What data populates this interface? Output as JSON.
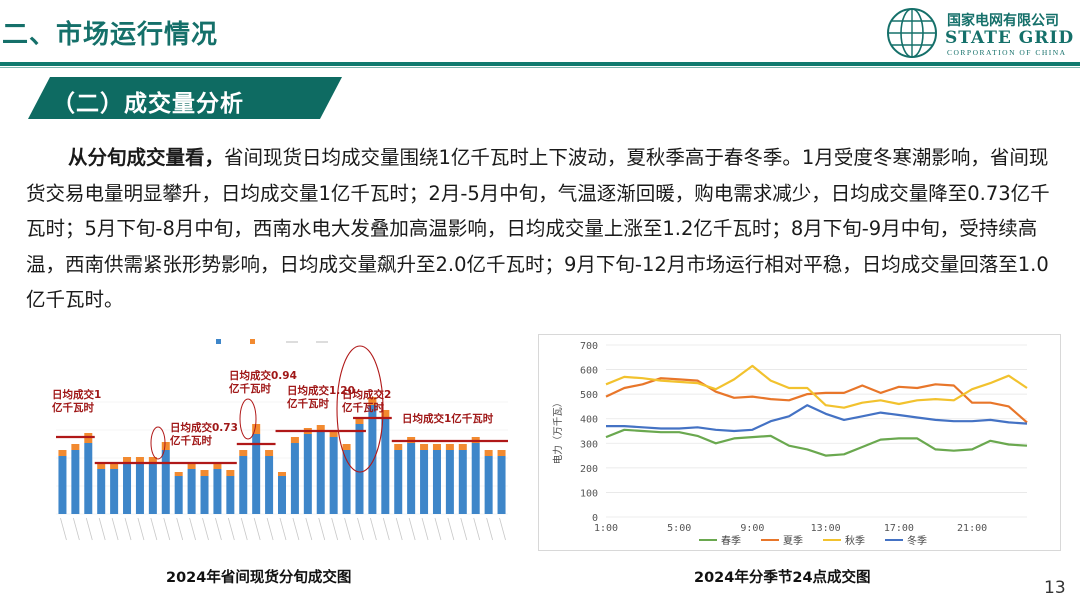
{
  "header": {
    "title": "二、市场运行情况"
  },
  "logo": {
    "cn": "国家电网有限公司",
    "en": "STATE GRID",
    "en_sub": "CORPORATION OF CHINA"
  },
  "section": {
    "title": "（二）成交量分析"
  },
  "paragraph": {
    "lead": "从分旬成交量看，",
    "body": "省间现货日均成交量围绕1亿千瓦时上下波动，夏秋季高于春冬季。1月受度冬寒潮影响，省间现货交易电量明显攀升，日均成交量1亿千瓦时；2月-5月中旬，气温逐渐回暖，购电需求减少，日均成交量降至0.73亿千瓦时；5月下旬-8月中旬，西南水电大发叠加高温影响，日均成交量上涨至1.2亿千瓦时；8月下旬-9月中旬，受持续高温，西南供需紧张形势影响，日均成交量飙升至2.0亿千瓦时；9月下旬-12月市场运行相对平稳，日均成交量回落至1.0亿千瓦时。"
  },
  "chart_data": [
    {
      "type": "bar",
      "title": "2024年省间现货分旬成交图",
      "colors": {
        "base": "#3e86c9",
        "top": "#f28a30",
        "avg": "#b01818"
      },
      "series": [
        {
          "name": "base",
          "values": [
            58,
            64,
            71,
            45,
            45,
            51,
            51,
            51,
            64,
            38,
            45,
            38,
            45,
            38,
            58,
            80,
            58,
            38,
            71,
            80,
            83,
            77,
            64,
            90,
            109,
            96,
            64,
            71,
            64,
            64,
            64,
            64,
            71,
            58,
            58
          ]
        },
        {
          "name": "top",
          "values": [
            6,
            6,
            10,
            6,
            6,
            6,
            6,
            6,
            8,
            4,
            6,
            6,
            6,
            6,
            6,
            10,
            6,
            4,
            6,
            6,
            6,
            6,
            6,
            6,
            8,
            8,
            6,
            6,
            6,
            6,
            6,
            6,
            6,
            6,
            6
          ]
        }
      ],
      "averages": [
        {
          "from": 1,
          "to": 3,
          "value": 77
        },
        {
          "from": 4,
          "to": 14,
          "value": 51
        },
        {
          "from": 15,
          "to": 17,
          "value": 70
        },
        {
          "from": 18,
          "to": 24,
          "value": 83
        },
        {
          "from": 24,
          "to": 26,
          "value": 96
        },
        {
          "from": 27,
          "to": 35,
          "value": 73
        }
      ],
      "annotations": [
        {
          "label": "日均成交1\n亿千瓦时"
        },
        {
          "label": "日均成交0.73\n亿千瓦时"
        },
        {
          "label": "日均成交0.94\n亿千瓦时"
        },
        {
          "label": "日均成交1.20\n亿千瓦时"
        },
        {
          "label": "日均成交2\n亿千瓦时"
        },
        {
          "label": "日均成交1亿千瓦时"
        }
      ]
    },
    {
      "type": "line",
      "title": "2024年分季节24点成交图",
      "ylabel": "电力（万千瓦）",
      "ylim": [
        0,
        700
      ],
      "yticks": [
        0,
        100,
        200,
        300,
        400,
        500,
        600,
        700
      ],
      "x": [
        "1:00",
        "2:00",
        "3:00",
        "4:00",
        "5:00",
        "6:00",
        "7:00",
        "8:00",
        "9:00",
        "10:00",
        "11:00",
        "12:00",
        "13:00",
        "14:00",
        "15:00",
        "16:00",
        "17:00",
        "18:00",
        "19:00",
        "20:00",
        "21:00",
        "22:00",
        "23:00",
        "24:00"
      ],
      "xtick_labels": [
        "1:00",
        "5:00",
        "9:00",
        "13:00",
        "17:00",
        "21:00"
      ],
      "grid": true,
      "legend": "bottom",
      "series": [
        {
          "name": "春季",
          "color": "#6aa84f",
          "values": [
            325,
            355,
            350,
            345,
            345,
            330,
            300,
            320,
            325,
            330,
            290,
            275,
            250,
            255,
            285,
            315,
            320,
            320,
            275,
            270,
            275,
            310,
            295,
            290
          ]
        },
        {
          "name": "夏季",
          "color": "#e8762a",
          "values": [
            490,
            525,
            540,
            565,
            560,
            555,
            510,
            485,
            490,
            480,
            475,
            500,
            505,
            505,
            535,
            505,
            530,
            525,
            540,
            535,
            465,
            465,
            450,
            385
          ]
        },
        {
          "name": "秋季",
          "color": "#f2c22e",
          "values": [
            540,
            570,
            565,
            555,
            550,
            545,
            520,
            560,
            615,
            555,
            525,
            525,
            455,
            445,
            465,
            475,
            460,
            475,
            480,
            475,
            520,
            545,
            575,
            525
          ]
        },
        {
          "name": "冬季",
          "color": "#4472c4",
          "values": [
            370,
            370,
            365,
            360,
            360,
            365,
            355,
            350,
            355,
            390,
            410,
            455,
            420,
            395,
            410,
            425,
            415,
            405,
            395,
            390,
            390,
            395,
            385,
            380
          ]
        }
      ]
    }
  ],
  "page": {
    "number": "13"
  }
}
